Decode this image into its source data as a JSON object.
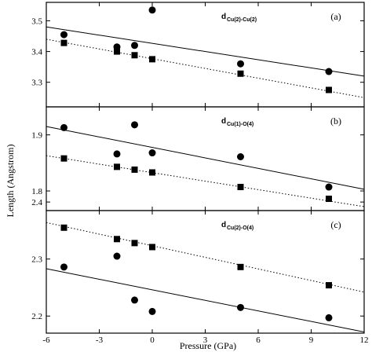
{
  "chart_data": {
    "type": "scatter",
    "xlabel": "Pressure (GPa)",
    "ylabel": "Length (Angstrom)",
    "xlim": [
      -6,
      12
    ],
    "xticks": [
      "-6",
      "-3",
      "0",
      "3",
      "6",
      "9",
      "12"
    ],
    "panels": [
      {
        "tag": "(a)",
        "title_main": "d",
        "title_sub": "Cu(2)-Cu(2)",
        "ylim": [
          3.22,
          3.56
        ],
        "yticks": [
          "3.3",
          "3.4",
          "3.5"
        ],
        "ytick_values": [
          3.3,
          3.4,
          3.5
        ],
        "series": [
          {
            "marker": "circle",
            "points": [
              [
                -5,
                3.455
              ],
              [
                -2,
                3.415
              ],
              [
                -1,
                3.42
              ],
              [
                0,
                3.535
              ],
              [
                5,
                3.36
              ],
              [
                10,
                3.335
              ]
            ]
          },
          {
            "marker": "square",
            "points": [
              [
                -5,
                3.428
              ],
              [
                -2,
                3.4
              ],
              [
                -1,
                3.388
              ],
              [
                0,
                3.375
              ],
              [
                5,
                3.328
              ],
              [
                10,
                3.275
              ]
            ]
          }
        ],
        "fits": [
          {
            "style": "solid",
            "from": [
              -6,
              3.48
            ],
            "to": [
              12,
              3.32
            ]
          },
          {
            "style": "dotted",
            "from": [
              -6,
              3.44
            ],
            "to": [
              12,
              3.25
            ]
          }
        ]
      },
      {
        "tag": "(b)",
        "title_main": "d",
        "title_sub": "Cu(1)-O(4)",
        "ylim": [
          1.765,
          1.95
        ],
        "yticks": [
          "1.8",
          "1.9"
        ],
        "ytick_values": [
          1.8,
          1.9
        ],
        "series": [
          {
            "marker": "circle",
            "points": [
              [
                -5,
                1.913
              ],
              [
                -2,
                1.866
              ],
              [
                -1,
                1.918
              ],
              [
                0,
                1.868
              ],
              [
                5,
                1.861
              ],
              [
                10,
                1.807
              ]
            ]
          },
          {
            "marker": "square",
            "points": [
              [
                -5,
                1.858
              ],
              [
                -2,
                1.843
              ],
              [
                -1,
                1.838
              ],
              [
                0,
                1.833
              ],
              [
                5,
                1.807
              ],
              [
                10,
                1.786
              ]
            ]
          }
        ],
        "fits": [
          {
            "style": "solid",
            "from": [
              -6,
              1.915
            ],
            "to": [
              12,
              1.803
            ]
          },
          {
            "style": "dotted",
            "from": [
              -6,
              1.863
            ],
            "to": [
              12,
              1.772
            ]
          }
        ]
      },
      {
        "tag": "(c)",
        "title_main": "d",
        "title_sub": "Cu(2)-O(4)",
        "ylim": [
          2.17,
          2.385
        ],
        "yticks": [
          "2.2",
          "2.3",
          "2.4"
        ],
        "ytick_values": [
          2.2,
          2.3,
          2.4
        ],
        "series": [
          {
            "marker": "circle",
            "points": [
              [
                -5,
                2.286
              ],
              [
                -2,
                2.305
              ],
              [
                -1,
                2.228
              ],
              [
                0,
                2.208
              ],
              [
                5,
                2.215
              ],
              [
                10,
                2.197
              ]
            ]
          },
          {
            "marker": "square",
            "points": [
              [
                -5,
                2.355
              ],
              [
                -2,
                2.335
              ],
              [
                -1,
                2.328
              ],
              [
                0,
                2.321
              ],
              [
                5,
                2.286
              ],
              [
                10,
                2.254
              ]
            ]
          }
        ],
        "fits": [
          {
            "style": "solid",
            "from": [
              -6,
              2.283
            ],
            "to": [
              12,
              2.172
            ]
          },
          {
            "style": "dotted",
            "from": [
              -6,
              2.364
            ],
            "to": [
              12,
              2.242
            ]
          }
        ]
      }
    ]
  }
}
